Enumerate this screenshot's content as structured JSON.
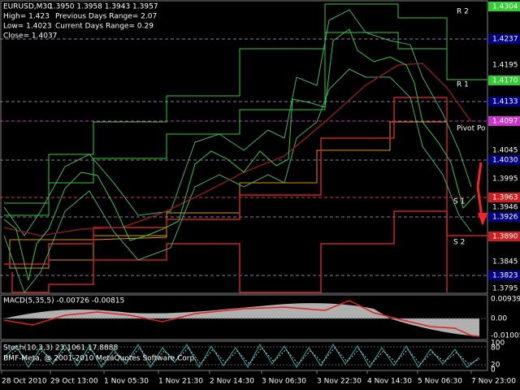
{
  "header": {
    "symbol": "EURUSD,M30",
    "ohlc": "1.3950 1.3958 1.3943 1.3957",
    "stats": [
      "High= 1.423",
      "Low= 1.4023",
      "Close= 1.4037"
    ],
    "ranges": [
      "Previous Days Range= 2.07",
      "Current Days Range= 0.29"
    ]
  },
  "price_axis": {
    "plain": [
      "1.4195",
      "1.4045",
      "1.3995",
      "1.3946",
      "1.3845",
      "1.3795"
    ],
    "boxed": [
      {
        "label": "1.4304",
        "color": "#33cc33"
      },
      {
        "label": "1.4237",
        "color": "#000080"
      },
      {
        "label": "1.4170",
        "color": "#33cc33"
      },
      {
        "label": "1.4133",
        "color": "#000080"
      },
      {
        "label": "1.4097",
        "color": "#cc33cc"
      },
      {
        "label": "1.4030",
        "color": "#000080"
      },
      {
        "label": "1.3963",
        "color": "#cc2020"
      },
      {
        "label": "1.3926",
        "color": "#000080"
      },
      {
        "label": "1.3890",
        "color": "#cc2020"
      },
      {
        "label": "1.3823",
        "color": "#000080"
      }
    ]
  },
  "level_labels": [
    "R 2",
    "R 1",
    "Pivot Po",
    "S 1",
    "S 2"
  ],
  "macd": {
    "label": "MACD(5,35,5) -0.00726 -0.00815",
    "axis": [
      "0.00939",
      "0.00",
      "-0.01005"
    ]
  },
  "stoch": {
    "label": "Stoch(10,3,3) 23.1061 17.8888",
    "copyright": "BMF-Meta, @ 2001-2010 MetaQuotes Software Corp.",
    "axis": [
      "100",
      "80",
      "20",
      "0"
    ]
  },
  "time_axis": [
    "28 Oct 2010",
    "29 Oct 13:00",
    "1 Nov 05:30",
    "1 Nov 21:30",
    "2 Nov 14:30",
    "3 Nov 06:30",
    "3 Nov 22:30",
    "4 Nov 14:30",
    "5 Nov 06:30",
    "7 Nov 23:00"
  ]
}
